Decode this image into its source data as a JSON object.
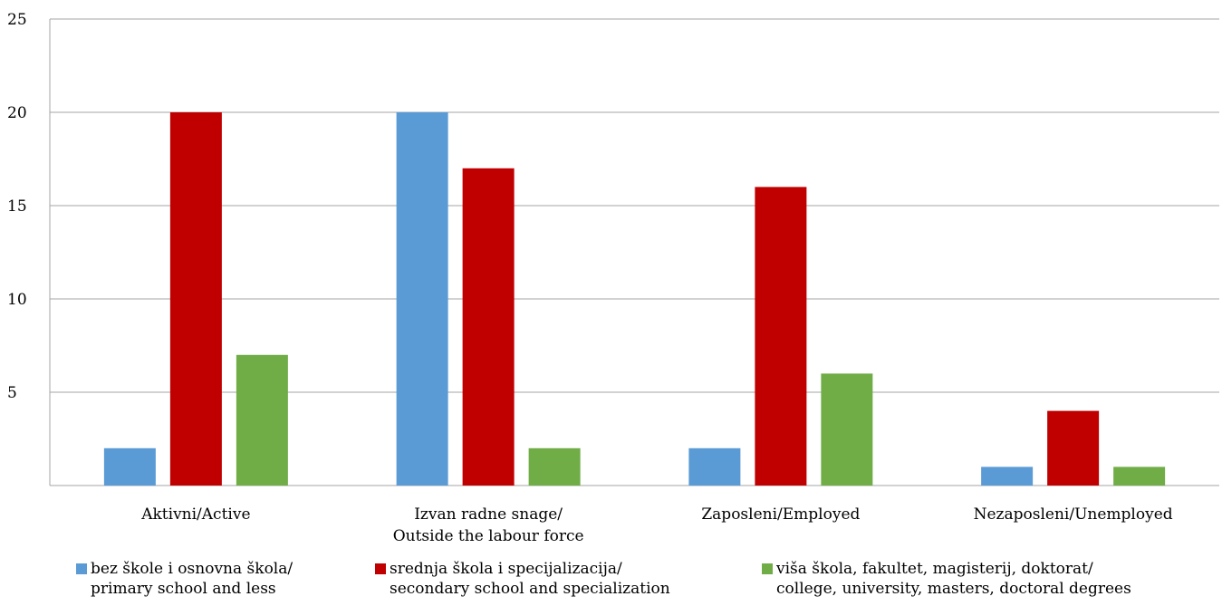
{
  "chart_data": {
    "type": "bar",
    "categories": [
      "Aktivni/Active",
      "Izvan radne snage/\nOutside the labour force",
      "Zaposleni/Employed",
      "Nezaposleni/Unemployed"
    ],
    "series": [
      {
        "name": "bez škole i osnovna škola/\nprimary school and less",
        "color": "#5b9bd5",
        "values": [
          2,
          20,
          2,
          1
        ]
      },
      {
        "name": "srednja škola i specijalizacija/\nsecondary school and specialization",
        "color": "#c00000",
        "values": [
          20,
          17,
          16,
          4
        ]
      },
      {
        "name": "viša škola, fakultet, magisterij, doktorat/\ncollege, university, masters, doctoral degrees",
        "color": "#70ad47",
        "values": [
          7,
          2,
          6,
          1
        ]
      }
    ],
    "y_ticks": [
      "5",
      "10",
      "15",
      "20",
      "25"
    ],
    "ylim": [
      0,
      25
    ],
    "grid": true,
    "legend_position": "bottom",
    "title": "",
    "xlabel": "",
    "ylabel": ""
  }
}
